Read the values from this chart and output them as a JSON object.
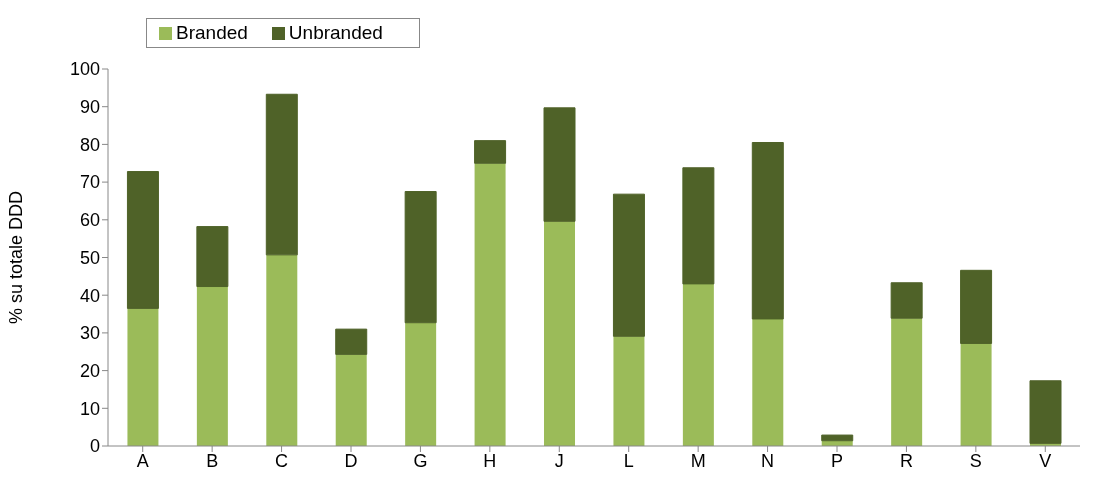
{
  "chart_data": {
    "type": "bar",
    "stacked": true,
    "ylabel": "% su totale DDD",
    "categories": [
      "A",
      "B",
      "C",
      "D",
      "G",
      "H",
      "J",
      "L",
      "M",
      "N",
      "P",
      "R",
      "S",
      "V"
    ],
    "series": [
      {
        "name": "Branded",
        "color": "#9bbb59",
        "values": [
          36.5,
          42.3,
          50.7,
          24.3,
          32.7,
          75.0,
          59.6,
          29.1,
          43.0,
          33.7,
          1.4,
          33.9,
          27.2,
          0.7
        ]
      },
      {
        "name": "Unbranded",
        "color": "#4f6228",
        "values": [
          36.3,
          15.9,
          42.6,
          6.7,
          34.8,
          6.0,
          30.1,
          37.7,
          30.8,
          46.8,
          1.5,
          9.4,
          19.4,
          16.6
        ]
      }
    ],
    "ylim": [
      0,
      100
    ],
    "yticks": [
      0,
      10,
      20,
      30,
      40,
      50,
      60,
      70,
      80,
      90,
      100
    ],
    "grid": false,
    "legend": "top left"
  }
}
